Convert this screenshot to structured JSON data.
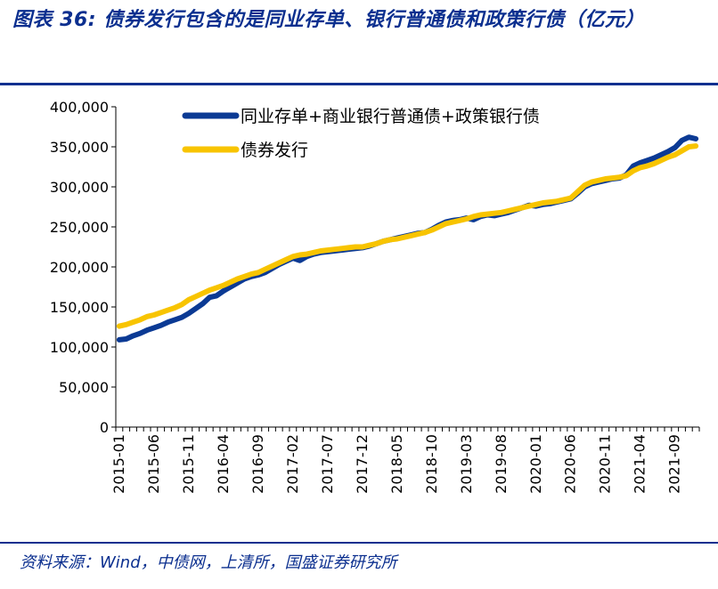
{
  "title": "图表 36:  债券发行包含的是同业存单、银行普通债和政策行债（亿元）",
  "source": "资料来源：Wind，中债网，上清所，国盛证券研究所",
  "chart_data": {
    "type": "line",
    "ylim": [
      0,
      400000
    ],
    "yticks": [
      0,
      50000,
      100000,
      150000,
      200000,
      250000,
      300000,
      350000,
      400000
    ],
    "ytick_labels": [
      "0",
      "50,000",
      "100,000",
      "150,000",
      "200,000",
      "250,000",
      "300,000",
      "350,000",
      "400,000"
    ],
    "xtick_labels": [
      "2015-01",
      "2015-06",
      "2015-11",
      "2016-04",
      "2016-09",
      "2017-02",
      "2017-07",
      "2017-12",
      "2018-05",
      "2018-10",
      "2019-03",
      "2019-08",
      "2020-01",
      "2020-06",
      "2020-11",
      "2021-04",
      "2021-09"
    ],
    "x": [
      "2015-01",
      "2015-02",
      "2015-03",
      "2015-04",
      "2015-05",
      "2015-06",
      "2015-07",
      "2015-08",
      "2015-09",
      "2015-10",
      "2015-11",
      "2015-12",
      "2016-01",
      "2016-02",
      "2016-03",
      "2016-04",
      "2016-05",
      "2016-06",
      "2016-07",
      "2016-08",
      "2016-09",
      "2016-10",
      "2016-11",
      "2016-12",
      "2017-01",
      "2017-02",
      "2017-03",
      "2017-04",
      "2017-05",
      "2017-06",
      "2017-07",
      "2017-08",
      "2017-09",
      "2017-10",
      "2017-11",
      "2017-12",
      "2018-01",
      "2018-02",
      "2018-03",
      "2018-04",
      "2018-05",
      "2018-06",
      "2018-07",
      "2018-08",
      "2018-09",
      "2018-10",
      "2018-11",
      "2018-12",
      "2019-01",
      "2019-02",
      "2019-03",
      "2019-04",
      "2019-05",
      "2019-06",
      "2019-07",
      "2019-08",
      "2019-09",
      "2019-10",
      "2019-11",
      "2019-12",
      "2020-01",
      "2020-02",
      "2020-03",
      "2020-04",
      "2020-05",
      "2020-06",
      "2020-07",
      "2020-08",
      "2020-09",
      "2020-10",
      "2020-11",
      "2020-12",
      "2021-01",
      "2021-02",
      "2021-03",
      "2021-04",
      "2021-05",
      "2021-06",
      "2021-07",
      "2021-08",
      "2021-09",
      "2021-10",
      "2021-11",
      "2021-12"
    ],
    "series": [
      {
        "name": "同业存单+商业银行普通债+政策银行债",
        "color": "#0b3a94",
        "values": [
          109000,
          110000,
          114000,
          117000,
          121000,
          124000,
          127000,
          131000,
          134000,
          137000,
          142000,
          148000,
          154000,
          162000,
          164000,
          170000,
          175000,
          180000,
          185000,
          188000,
          190000,
          193000,
          198000,
          203000,
          207000,
          211000,
          208000,
          213000,
          216000,
          218000,
          219000,
          220000,
          221000,
          222000,
          223000,
          224000,
          226000,
          229000,
          232000,
          234000,
          236000,
          238000,
          240000,
          242000,
          243000,
          247000,
          252000,
          256000,
          258000,
          259000,
          261000,
          259000,
          263000,
          265000,
          264000,
          266000,
          268000,
          271000,
          274000,
          277000,
          276000,
          278000,
          279000,
          281000,
          283000,
          285000,
          292000,
          300000,
          304000,
          306000,
          308000,
          310000,
          311000,
          315000,
          326000,
          330000,
          333000,
          336000,
          340000,
          344000,
          349000,
          358000,
          362000,
          360000
        ]
      },
      {
        "name": "债券发行",
        "color": "#f8c400",
        "values": [
          126000,
          128000,
          131000,
          134000,
          138000,
          140000,
          143000,
          146000,
          149000,
          153000,
          159000,
          163000,
          167000,
          171000,
          174000,
          177000,
          181000,
          185000,
          188000,
          191000,
          193000,
          197000,
          201000,
          205000,
          209000,
          213000,
          215000,
          216000,
          218000,
          220000,
          221000,
          222000,
          223000,
          224000,
          225000,
          225000,
          227000,
          229000,
          232000,
          234000,
          235000,
          237000,
          239000,
          241000,
          243000,
          246000,
          250000,
          254000,
          256000,
          258000,
          260000,
          263000,
          265000,
          266000,
          267000,
          268000,
          270000,
          272000,
          274000,
          276000,
          278000,
          280000,
          281000,
          282000,
          284000,
          286000,
          294000,
          302000,
          306000,
          308000,
          310000,
          311000,
          312000,
          314000,
          320000,
          324000,
          326000,
          329000,
          333000,
          337000,
          340000,
          345000,
          350000,
          351000
        ]
      }
    ],
    "legend": "top-left"
  }
}
